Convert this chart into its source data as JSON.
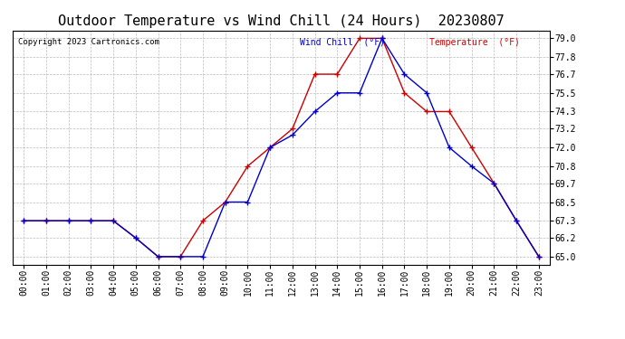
{
  "title": "Outdoor Temperature vs Wind Chill (24 Hours)  20230807",
  "copyright": "Copyright 2023 Cartronics.com",
  "legend_wind_chill": "Wind Chill  (°F)",
  "legend_temperature": "Temperature  (°F)",
  "x_labels": [
    "00:00",
    "01:00",
    "02:00",
    "03:00",
    "04:00",
    "05:00",
    "06:00",
    "07:00",
    "08:00",
    "09:00",
    "10:00",
    "11:00",
    "12:00",
    "13:00",
    "14:00",
    "15:00",
    "16:00",
    "17:00",
    "18:00",
    "19:00",
    "20:00",
    "21:00",
    "22:00",
    "23:00"
  ],
  "temperature": [
    67.3,
    67.3,
    67.3,
    67.3,
    67.3,
    66.2,
    65.0,
    65.0,
    67.3,
    68.5,
    70.8,
    72.0,
    73.2,
    76.7,
    76.7,
    79.0,
    79.0,
    75.5,
    74.3,
    74.3,
    72.0,
    69.7,
    67.3,
    65.0
  ],
  "wind_chill": [
    67.3,
    67.3,
    67.3,
    67.3,
    67.3,
    66.2,
    65.0,
    65.0,
    65.0,
    68.5,
    68.5,
    72.0,
    72.8,
    74.3,
    75.5,
    75.5,
    79.0,
    76.7,
    75.5,
    72.0,
    70.8,
    69.7,
    67.3,
    65.0
  ],
  "temperature_color": "#cc0000",
  "wind_chill_color": "#0000cc",
  "y_ticks": [
    65.0,
    66.2,
    67.3,
    68.5,
    69.7,
    70.8,
    72.0,
    73.2,
    74.3,
    75.5,
    76.7,
    77.8,
    79.0
  ],
  "ylim": [
    64.5,
    79.5
  ],
  "background_color": "#ffffff",
  "grid_color": "#bbbbbb",
  "title_fontsize": 11,
  "axis_fontsize": 7,
  "fig_width": 6.9,
  "fig_height": 3.75,
  "dpi": 100
}
